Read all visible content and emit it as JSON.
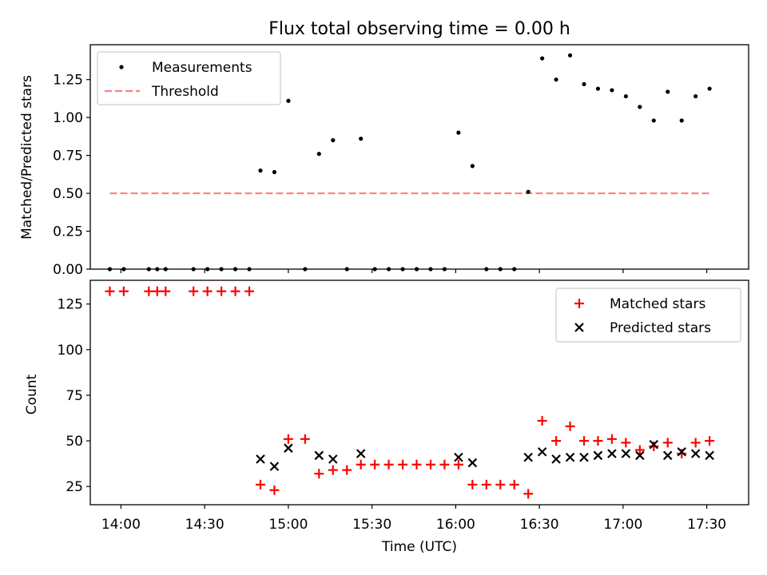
{
  "chart_data": [
    {
      "type": "scatter",
      "title": "Flux total observing time = 0.00 h",
      "xlabel": "",
      "ylabel": "Matched/Predicted stars",
      "xlim": [
        "13:49",
        "17:45"
      ],
      "ylim": [
        0,
        1.48
      ],
      "yticks": [
        0,
        0.25,
        0.5,
        0.75,
        1.0,
        1.25
      ],
      "ytick_labels": [
        "0.00",
        "0.25",
        "0.50",
        "0.75",
        "1.00",
        "1.25"
      ],
      "legend": {
        "placement": "top-left",
        "entries": [
          "Measurements",
          "Threshold"
        ]
      },
      "colors": {
        "measurements": "#000000",
        "threshold": "#ff7f7f"
      },
      "series": [
        {
          "name": "Measurements",
          "kind": "points",
          "x": [
            "13:56",
            "14:01",
            "14:10",
            "14:13",
            "14:16",
            "14:26",
            "14:31",
            "14:36",
            "14:41",
            "14:46",
            "14:50",
            "14:55",
            "15:00",
            "15:06",
            "15:11",
            "15:16",
            "15:21",
            "15:26",
            "15:31",
            "15:36",
            "15:41",
            "15:46",
            "15:51",
            "15:56",
            "16:01",
            "16:06",
            "16:11",
            "16:16",
            "16:21",
            "16:26",
            "16:31",
            "16:36",
            "16:41",
            "16:46",
            "16:51",
            "16:56",
            "17:01",
            "17:06",
            "17:11",
            "17:16",
            "17:21",
            "17:26",
            "17:31"
          ],
          "y": [
            0,
            0,
            0,
            0,
            0,
            0,
            0,
            0,
            0,
            0,
            0.65,
            0.64,
            1.11,
            0,
            0.76,
            0.85,
            0,
            0.86,
            0,
            0,
            0,
            0,
            0,
            0,
            0.9,
            0.68,
            0,
            0,
            0,
            0.51,
            1.39,
            1.25,
            1.41,
            1.22,
            1.19,
            1.18,
            1.14,
            1.07,
            0.98,
            1.17,
            0.98,
            1.14,
            1.19
          ]
        },
        {
          "name": "Threshold",
          "kind": "dashed-line",
          "x": [
            "13:56",
            "17:31"
          ],
          "y": [
            0.5,
            0.5
          ]
        }
      ]
    },
    {
      "type": "scatter",
      "title": "",
      "xlabel": "Time (UTC)",
      "ylabel": "Count",
      "xlim": [
        "13:49",
        "17:45"
      ],
      "ylim": [
        15,
        138
      ],
      "yticks": [
        25,
        50,
        75,
        100,
        125
      ],
      "xticks": [
        "14:00",
        "14:30",
        "15:00",
        "15:30",
        "16:00",
        "16:30",
        "17:00",
        "17:30"
      ],
      "legend": {
        "placement": "top-right",
        "entries": [
          "Matched stars",
          "Predicted stars"
        ]
      },
      "colors": {
        "matched": "#ff0000",
        "predicted": "#000000"
      },
      "series": [
        {
          "name": "Matched stars",
          "marker": "plus",
          "x": [
            "13:56",
            "14:01",
            "14:10",
            "14:13",
            "14:16",
            "14:26",
            "14:31",
            "14:36",
            "14:41",
            "14:46",
            "14:50",
            "14:55",
            "15:00",
            "15:06",
            "15:11",
            "15:16",
            "15:21",
            "15:26",
            "15:31",
            "15:36",
            "15:41",
            "15:46",
            "15:51",
            "15:56",
            "16:01",
            "16:06",
            "16:11",
            "16:16",
            "16:21",
            "16:26",
            "16:31",
            "16:36",
            "16:41",
            "16:46",
            "16:51",
            "16:56",
            "17:01",
            "17:06",
            "17:11",
            "17:16",
            "17:21",
            "17:26",
            "17:31"
          ],
          "y": [
            132,
            132,
            132,
            132,
            132,
            132,
            132,
            132,
            132,
            132,
            26,
            23,
            51,
            51,
            32,
            34,
            34,
            37,
            37,
            37,
            37,
            37,
            37,
            37,
            37,
            26,
            26,
            26,
            26,
            21,
            61,
            50,
            58,
            50,
            50,
            51,
            49,
            45,
            47,
            49,
            43,
            49,
            50
          ]
        },
        {
          "name": "Predicted stars",
          "marker": "x",
          "x": [
            "14:50",
            "14:55",
            "15:00",
            "15:11",
            "15:16",
            "15:26",
            "16:01",
            "16:06",
            "16:26",
            "16:31",
            "16:36",
            "16:41",
            "16:46",
            "16:51",
            "16:56",
            "17:01",
            "17:06",
            "17:11",
            "17:16",
            "17:21",
            "17:26",
            "17:31"
          ],
          "y": [
            40,
            36,
            46,
            42,
            40,
            43,
            41,
            38,
            41,
            44,
            40,
            41,
            41,
            42,
            43,
            43,
            42,
            48,
            42,
            44,
            43,
            42
          ]
        }
      ]
    }
  ]
}
